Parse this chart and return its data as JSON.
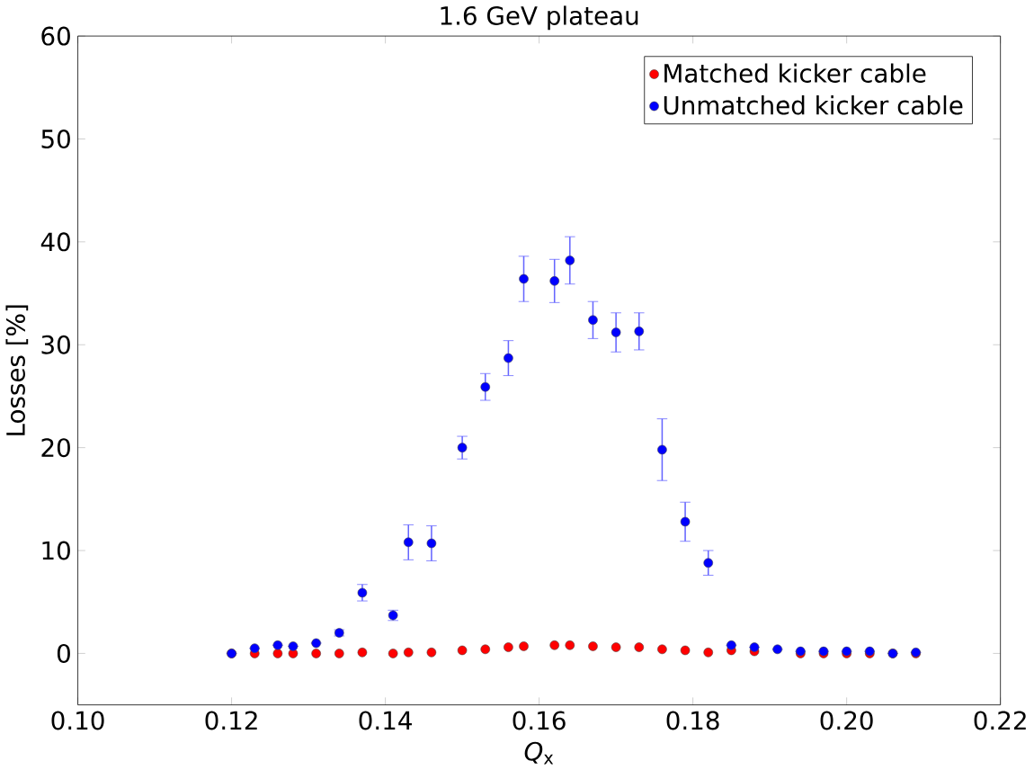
{
  "chart_data": {
    "type": "scatter",
    "title": "1.6 GeV plateau",
    "xlabel": "*Q*$_{x}$",
    "ylabel": "Losses [%]",
    "x": [
      0.12,
      0.123,
      0.126,
      0.128,
      0.131,
      0.134,
      0.137,
      0.141,
      0.143,
      0.146,
      0.15,
      0.153,
      0.156,
      0.158,
      0.162,
      0.164,
      0.167,
      0.17,
      0.173,
      0.176,
      0.179,
      0.182,
      0.185,
      0.188,
      0.191,
      0.194,
      0.197,
      0.2,
      0.203,
      0.206,
      0.209
    ],
    "series": [
      {
        "name": "Matched kicker cable",
        "color": "#ff0000",
        "values": [
          0.0,
          0.0,
          0.0,
          0.0,
          0.0,
          0.0,
          0.1,
          0.0,
          0.1,
          0.1,
          0.3,
          0.4,
          0.6,
          0.7,
          0.8,
          0.8,
          0.7,
          0.6,
          0.6,
          0.4,
          0.3,
          0.1,
          0.3,
          0.2,
          null,
          0.0,
          0.0,
          0.0,
          0.0,
          0.0,
          0.0
        ]
      },
      {
        "name": "Unmatched kicker cable",
        "color": "#0000ff",
        "values": [
          0.0,
          0.5,
          0.8,
          0.7,
          1.0,
          2.0,
          5.9,
          3.7,
          10.8,
          10.7,
          20.0,
          25.9,
          28.7,
          36.4,
          36.2,
          38.2,
          32.4,
          31.2,
          31.3,
          19.8,
          12.8,
          8.8,
          0.8,
          0.6,
          0.4,
          0.2,
          0.2,
          0.2,
          0.2,
          0.0,
          0.1
        ],
        "errors": [
          null,
          null,
          null,
          null,
          null,
          0.3,
          0.8,
          0.5,
          1.7,
          1.7,
          1.1,
          1.3,
          1.7,
          2.2,
          2.1,
          2.3,
          1.8,
          1.9,
          1.8,
          3.0,
          1.9,
          1.2,
          null,
          null,
          null,
          null,
          null,
          null,
          null,
          null,
          null
        ]
      }
    ],
    "xlim": [
      0.1,
      0.22
    ],
    "xticks": [
      {
        "value": 0.1,
        "label": "0.10"
      },
      0.12,
      0.14,
      0.16,
      0.18,
      {
        "value": 0.2,
        "label": "0.20"
      },
      0.22
    ],
    "ylim": [
      -5,
      60
    ],
    "yticks": [
      0,
      10,
      20,
      30,
      40,
      50,
      60
    ],
    "legend": "top right",
    "marker": "circle",
    "grid": false
  }
}
